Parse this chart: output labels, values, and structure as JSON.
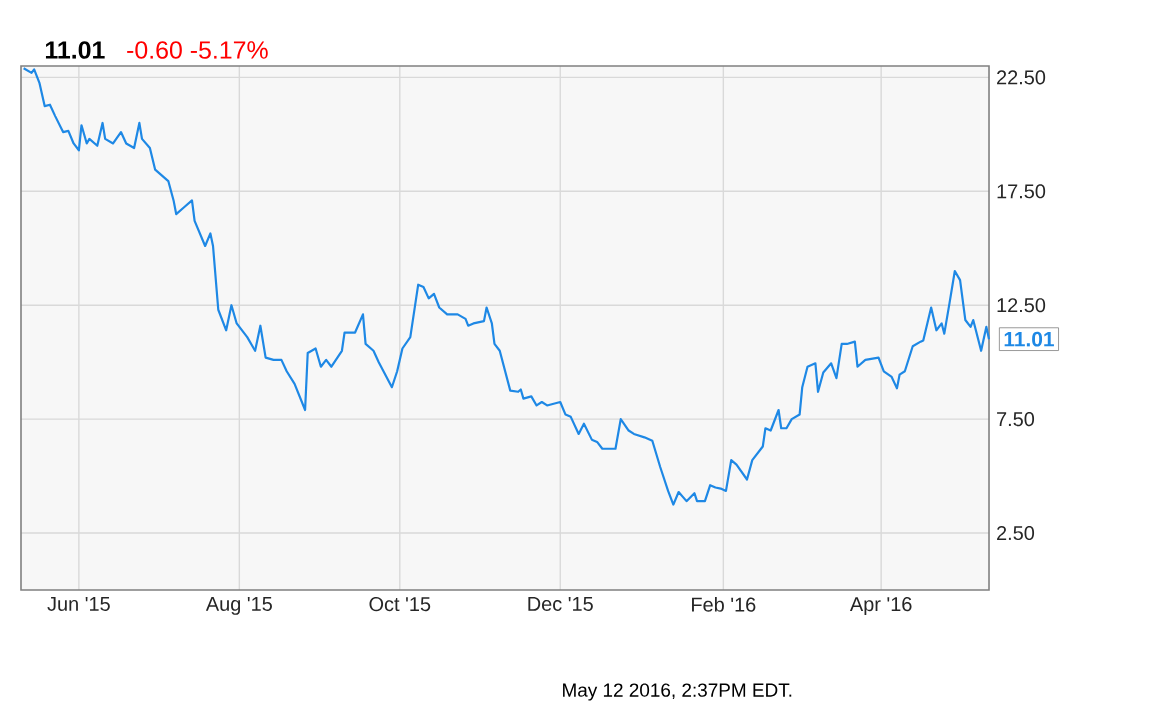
{
  "chart_data": {
    "type": "line",
    "title": "11.01",
    "subtitle": "-0.60 -5.17%",
    "annotations": [
      {
        "text": "11.01",
        "x": "2016-05-12",
        "y": 11.01
      },
      "May 12 2016, 2:37PM EDT."
    ],
    "x": [
      "2015-05-11",
      "2015-05-14",
      "2015-05-15",
      "2015-05-17",
      "2015-05-19",
      "2015-05-21",
      "2015-05-23",
      "2015-05-26",
      "2015-05-28",
      "2015-05-30",
      "2015-06-01",
      "2015-06-02",
      "2015-06-04",
      "2015-06-05",
      "2015-06-08",
      "2015-06-10",
      "2015-06-11",
      "2015-06-14",
      "2015-06-17",
      "2015-06-19",
      "2015-06-22",
      "2015-06-24",
      "2015-06-25",
      "2015-06-28",
      "2015-06-30",
      "2015-07-05",
      "2015-07-07",
      "2015-07-08",
      "2015-07-11",
      "2015-07-14",
      "2015-07-15",
      "2015-07-19",
      "2015-07-21",
      "2015-07-22",
      "2015-07-24",
      "2015-07-27",
      "2015-07-29",
      "2015-07-31",
      "2015-08-04",
      "2015-08-07",
      "2015-08-09",
      "2015-08-11",
      "2015-08-14",
      "2015-08-17",
      "2015-08-19",
      "2015-08-22",
      "2015-08-26",
      "2015-08-27",
      "2015-08-30",
      "2015-09-01",
      "2015-09-03",
      "2015-09-05",
      "2015-09-09",
      "2015-09-10",
      "2015-09-14",
      "2015-09-17",
      "2015-09-18",
      "2015-09-21",
      "2015-09-23",
      "2015-09-28",
      "2015-09-30",
      "2015-10-02",
      "2015-10-05",
      "2015-10-08",
      "2015-10-10",
      "2015-10-12",
      "2015-10-14",
      "2015-10-16",
      "2015-10-19",
      "2015-10-20",
      "2015-10-23",
      "2015-10-26",
      "2015-10-27",
      "2015-10-29",
      "2015-11-02",
      "2015-11-03",
      "2015-11-05",
      "2015-11-06",
      "2015-11-08",
      "2015-11-12",
      "2015-11-15",
      "2015-11-16",
      "2015-11-17",
      "2015-11-20",
      "2015-11-22",
      "2015-11-24",
      "2015-11-26",
      "2015-12-01",
      "2015-12-03",
      "2015-12-05",
      "2015-12-08",
      "2015-12-10",
      "2015-12-13",
      "2015-12-15",
      "2015-12-17",
      "2015-12-20",
      "2015-12-22",
      "2015-12-24",
      "2015-12-27",
      "2015-12-29",
      "2016-01-02",
      "2016-01-05",
      "2016-01-08",
      "2016-01-11",
      "2016-01-13",
      "2016-01-15",
      "2016-01-18",
      "2016-01-21",
      "2016-01-22",
      "2016-01-25",
      "2016-01-27",
      "2016-01-29",
      "2016-01-31",
      "2016-02-02",
      "2016-02-04",
      "2016-02-06",
      "2016-02-10",
      "2016-02-12",
      "2016-02-16",
      "2016-02-17",
      "2016-02-19",
      "2016-02-22",
      "2016-02-23",
      "2016-02-25",
      "2016-02-27",
      "2016-03-01",
      "2016-03-02",
      "2016-03-04",
      "2016-03-07",
      "2016-03-08",
      "2016-03-10",
      "2016-03-13",
      "2016-03-15",
      "2016-03-17",
      "2016-03-19",
      "2016-03-22",
      "2016-03-23",
      "2016-03-26",
      "2016-03-31",
      "2016-04-02",
      "2016-04-05",
      "2016-04-07",
      "2016-04-08",
      "2016-04-10",
      "2016-04-13",
      "2016-04-16",
      "2016-04-17",
      "2016-04-20",
      "2016-04-22",
      "2016-04-24",
      "2016-04-25",
      "2016-04-27",
      "2016-04-29",
      "2016-05-01",
      "2016-05-03",
      "2016-05-05",
      "2016-05-06",
      "2016-05-09",
      "2016-05-11",
      "2016-05-12"
    ],
    "series": [
      {
        "color": "#1e88e5",
        "values": [
          22.9,
          22.7,
          22.85,
          22.26,
          21.24,
          21.3,
          20.8,
          20.1,
          20.15,
          19.6,
          19.3,
          20.4,
          19.6,
          19.8,
          19.5,
          20.5,
          19.8,
          19.6,
          20.1,
          19.6,
          19.4,
          20.5,
          19.8,
          19.4,
          18.45,
          17.95,
          17.1,
          16.5,
          16.8,
          17.1,
          16.2,
          15.1,
          15.65,
          15.1,
          12.3,
          11.4,
          12.5,
          11.7,
          11.1,
          10.5,
          11.6,
          10.2,
          10.1,
          10.1,
          9.6,
          9.05,
          7.9,
          10.4,
          10.6,
          9.8,
          10.1,
          9.8,
          10.5,
          11.3,
          11.3,
          12.1,
          10.8,
          10.5,
          10.0,
          8.9,
          9.6,
          10.6,
          11.1,
          13.4,
          13.3,
          12.8,
          13.0,
          12.4,
          12.1,
          12.1,
          12.1,
          11.9,
          11.6,
          11.7,
          11.8,
          12.4,
          11.7,
          10.8,
          10.5,
          8.75,
          8.7,
          8.8,
          8.4,
          8.5,
          8.1,
          8.25,
          8.1,
          8.25,
          7.7,
          7.6,
          6.85,
          7.3,
          6.6,
          6.5,
          6.2,
          6.2,
          6.2,
          7.5,
          7.0,
          6.85,
          6.7,
          6.55,
          5.4,
          4.35,
          3.75,
          4.3,
          3.9,
          4.25,
          3.9,
          3.9,
          4.6,
          4.5,
          4.45,
          4.35,
          5.7,
          5.5,
          4.85,
          5.7,
          6.3,
          7.1,
          7.0,
          7.9,
          7.1,
          7.1,
          7.5,
          7.7,
          8.9,
          9.8,
          9.95,
          8.7,
          9.55,
          9.95,
          9.3,
          10.8,
          10.8,
          10.9,
          9.8,
          10.1,
          10.2,
          9.6,
          9.35,
          8.85,
          9.45,
          9.6,
          10.7,
          10.9,
          10.95,
          12.4,
          11.4,
          11.7,
          11.25,
          12.6,
          14.0,
          13.6,
          11.85,
          11.55,
          11.85,
          10.5,
          11.55,
          11.01
        ]
      }
    ],
    "xlim": [
      "2015-05-10",
      "2016-05-12"
    ],
    "xticks": [
      {
        "value": "2015-06-01",
        "label": "Jun '15"
      },
      {
        "value": "2015-08-01",
        "label": "Aug '15"
      },
      {
        "value": "2015-10-01",
        "label": "Oct '15"
      },
      {
        "value": "2015-12-01",
        "label": "Dec '15"
      },
      {
        "value": "2016-02-01",
        "label": "Feb '16"
      },
      {
        "value": "2016-04-01",
        "label": "Apr '16"
      }
    ],
    "ylim": [
      0,
      23
    ],
    "yticks": [
      {
        "value": 2.5,
        "label": "2.50"
      },
      {
        "value": 7.5,
        "label": "7.50"
      },
      {
        "value": 12.5,
        "label": "12.50"
      },
      {
        "value": 17.5,
        "label": "17.50"
      },
      {
        "value": 22.5,
        "label": "22.50"
      }
    ],
    "grid": true,
    "marker": "none",
    "line_style": "solid"
  }
}
